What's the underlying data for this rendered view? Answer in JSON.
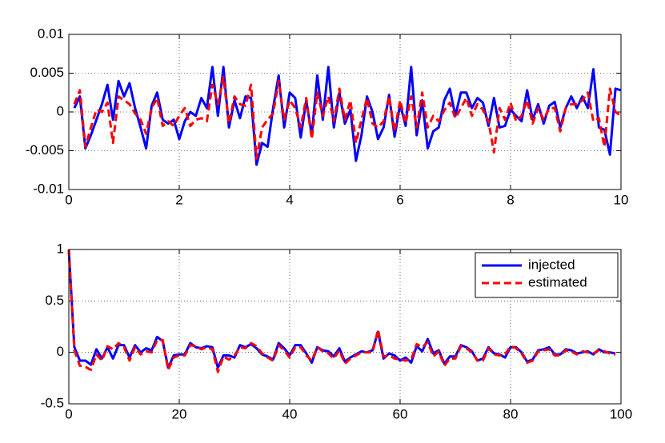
{
  "chart_data": [
    {
      "type": "line",
      "x": [
        0.1,
        0.2,
        0.3,
        0.4,
        0.5,
        0.6,
        0.7,
        0.8,
        0.9,
        1.0,
        1.1,
        1.2,
        1.3,
        1.4,
        1.5,
        1.6,
        1.7,
        1.8,
        1.9,
        2.0,
        2.1,
        2.2,
        2.3,
        2.4,
        2.5,
        2.6,
        2.7,
        2.8,
        2.9,
        3.0,
        3.1,
        3.2,
        3.3,
        3.4,
        3.5,
        3.6,
        3.7,
        3.8,
        3.9,
        4.0,
        4.1,
        4.2,
        4.3,
        4.4,
        4.5,
        4.6,
        4.7,
        4.8,
        4.9,
        5.0,
        5.1,
        5.2,
        5.3,
        5.4,
        5.5,
        5.6,
        5.7,
        5.8,
        5.9,
        6.0,
        6.1,
        6.2,
        6.3,
        6.4,
        6.5,
        6.6,
        6.7,
        6.8,
        6.9,
        7.0,
        7.1,
        7.2,
        7.3,
        7.4,
        7.5,
        7.6,
        7.7,
        7.8,
        7.9,
        8.0,
        8.1,
        8.2,
        8.3,
        8.4,
        8.5,
        8.6,
        8.7,
        8.8,
        8.9,
        9.0,
        9.1,
        9.2,
        9.3,
        9.4,
        9.5,
        9.6,
        9.7,
        9.8,
        9.9,
        10.0
      ],
      "series": [
        {
          "color": "#0000ff",
          "dash": "solid",
          "values": [
            0.0005,
            0.002,
            -0.0047,
            -0.003,
            -0.001,
            0.001,
            0.0035,
            -0.001,
            0.004,
            0.002,
            0.0037,
            0.0005,
            -0.002,
            -0.0047,
            0.0008,
            0.0025,
            -0.001,
            -0.0015,
            -0.001,
            -0.0035,
            -0.0012,
            0,
            -0.0005,
            0.0018,
            0.0005,
            0.0058,
            -0.0005,
            0.0058,
            -0.002,
            0.0015,
            -0.0008,
            0.002,
            0.0018,
            -0.0068,
            -0.004,
            -0.0045,
            0.0005,
            0.0047,
            -0.002,
            0.0025,
            0.0018,
            -0.0033,
            0.0015,
            -0.003,
            0.0047,
            -0.001,
            0.0058,
            -0.002,
            0.0025,
            -0.0015,
            0.0003,
            -0.0063,
            -0.003,
            0.002,
            0,
            -0.0035,
            -0.002,
            0.0022,
            -0.0032,
            0.001,
            -0.0018,
            0.0058,
            -0.003,
            0.0015,
            -0.0047,
            -0.0025,
            -0.002,
            0.0015,
            0.003,
            -0.0005,
            0.0025,
            0.0025,
            0.0005,
            0.0018,
            0.0012,
            -0.0018,
            0.0018,
            -0.002,
            -0.0018,
            0.0003,
            -0.0005,
            -0.0012,
            0.0028,
            -0.001,
            0.001,
            -0.0015,
            0.0008,
            0.0013,
            -0.002,
            0.0005,
            0.002,
            0.0005,
            0.002,
            0.0005,
            0.0055,
            -0.002,
            -0.0023,
            -0.0055,
            0.003,
            0.0028
          ]
        },
        {
          "color": "#ff0000",
          "dash": "dashed",
          "values": [
            0.001,
            0.0028,
            -0.0045,
            -0.002,
            0.0003,
            0,
            0.0012,
            -0.004,
            0.002,
            0.0015,
            0.001,
            -0.0002,
            -0.001,
            -0.0028,
            0.0005,
            0.0018,
            -0.0018,
            -0.0012,
            -0.0018,
            -0.0005,
            0.0005,
            -0.0018,
            -0.001,
            -0.0008,
            -0.0012,
            0.0035,
            0.001,
            0.0045,
            -0.0015,
            0.002,
            0.001,
            0.0008,
            0.0035,
            -0.006,
            -0.002,
            -0.001,
            -0.0002,
            0.004,
            -0.001,
            0.0015,
            0.0005,
            -0.002,
            0.0018,
            -0.0035,
            0.0025,
            -0.0005,
            0.002,
            -0.0012,
            0.003,
            -0.001,
            0.0015,
            -0.004,
            -0.001,
            0.0018,
            -0.0015,
            -0.002,
            -0.0012,
            0.002,
            -0.0025,
            0.0015,
            -0.0015,
            0.002,
            -0.002,
            0.0025,
            -0.002,
            -0.0005,
            -0.0012,
            0.0002,
            0.0012,
            -0.0008,
            0.0005,
            0.0018,
            -0.0005,
            0.001,
            0.0003,
            -0.0012,
            -0.0052,
            0.0005,
            -0.001,
            0.0012,
            -0.0012,
            -0.0005,
            0.0015,
            -0.0015,
            0.0005,
            -0.001,
            0.0005,
            0.0005,
            -0.0025,
            0.0005,
            0.001,
            0.001,
            0.0015,
            0.0025,
            -0.0012,
            -0.0008,
            -0.0045,
            0.003,
            0,
            -0.0005
          ]
        }
      ],
      "xlim": [
        0,
        10
      ],
      "xticks": [
        0,
        2,
        4,
        6,
        8,
        10
      ],
      "ylim": [
        -0.01,
        0.01
      ],
      "yticks": [
        -0.01,
        -0.005,
        0,
        0.005,
        0.01
      ],
      "grid": true
    },
    {
      "type": "line",
      "x": [
        0,
        1,
        2,
        3,
        4,
        5,
        6,
        7,
        8,
        9,
        10,
        11,
        12,
        13,
        14,
        15,
        16,
        17,
        18,
        19,
        20,
        21,
        22,
        23,
        24,
        25,
        26,
        27,
        28,
        29,
        30,
        31,
        32,
        33,
        34,
        35,
        36,
        37,
        38,
        39,
        40,
        41,
        42,
        43,
        44,
        45,
        46,
        47,
        48,
        49,
        50,
        51,
        52,
        53,
        54,
        55,
        56,
        57,
        58,
        59,
        60,
        61,
        62,
        63,
        64,
        65,
        66,
        67,
        68,
        69,
        70,
        71,
        72,
        73,
        74,
        75,
        76,
        77,
        78,
        79,
        80,
        81,
        82,
        83,
        84,
        85,
        86,
        87,
        88,
        89,
        90,
        91,
        92,
        93,
        94,
        95,
        96,
        97,
        98,
        99
      ],
      "series": [
        {
          "name": "injected",
          "color": "#0000ff",
          "dash": "solid",
          "values": [
            1,
            0.05,
            -0.08,
            -0.08,
            -0.12,
            0.03,
            -0.06,
            0.05,
            -0.06,
            0.07,
            0.07,
            -0.05,
            0.07,
            0,
            0.04,
            0.02,
            0.15,
            0.11,
            -0.15,
            -0.03,
            -0.02,
            -0.02,
            0.09,
            0.05,
            0.04,
            0.06,
            0.05,
            -0.15,
            -0.03,
            -0.03,
            -0.05,
            0.07,
            0.05,
            0.08,
            0.04,
            -0.02,
            -0.04,
            -0.07,
            0.09,
            0.04,
            -0.03,
            0.07,
            0.07,
            -0.01,
            -0.1,
            0.05,
            0.02,
            0.01,
            -0.04,
            0.04,
            -0.09,
            -0.05,
            -0.02,
            0.01,
            0,
            0.02,
            0.2,
            -0.06,
            -0.01,
            -0.03,
            -0.08,
            -0.05,
            -0.1,
            0.06,
            0.01,
            0.13,
            -0.01,
            0.02,
            -0.11,
            -0.04,
            -0.04,
            0.07,
            0.05,
            0.01,
            -0.08,
            -0.06,
            0.05,
            -0.01,
            -0.02,
            -0.05,
            0.05,
            0.05,
            0,
            -0.09,
            -0.07,
            0.02,
            0.03,
            0.05,
            -0.02,
            -0.02,
            0.03,
            0.02,
            -0.01,
            0,
            0.01,
            -0.02,
            0.03,
            0,
            0,
            -0.01
          ]
        },
        {
          "name": "estimated",
          "color": "#ff0000",
          "dash": "dashed",
          "values": [
            1,
            0.02,
            -0.13,
            -0.14,
            -0.17,
            -0.02,
            -0.08,
            0.06,
            0.03,
            0.09,
            0.05,
            -0.08,
            0.05,
            -0.02,
            0.01,
            0,
            0.12,
            0.12,
            -0.17,
            -0.05,
            -0.03,
            -0.03,
            0.07,
            0.06,
            0.03,
            0.05,
            0.03,
            -0.19,
            -0.04,
            -0.07,
            -0.03,
            0.05,
            0.04,
            0.09,
            0.06,
            -0.01,
            -0.05,
            -0.08,
            0.07,
            0.02,
            -0.05,
            0.05,
            0.05,
            -0.03,
            -0.08,
            0.05,
            0.01,
            -0.01,
            -0.06,
            0.02,
            -0.11,
            -0.06,
            -0.03,
            0,
            0,
            0,
            0.22,
            -0.04,
            -0.03,
            -0.06,
            -0.07,
            -0.08,
            -0.07,
            0.08,
            0.05,
            0.1,
            -0.04,
            0.01,
            -0.13,
            -0.06,
            -0.06,
            0.06,
            0.04,
            0,
            -0.08,
            -0.08,
            0.04,
            -0.02,
            -0.03,
            -0.02,
            0.06,
            0.04,
            -0.01,
            -0.1,
            -0.08,
            0.01,
            0.02,
            0.03,
            -0.03,
            -0.03,
            0.02,
            0.01,
            -0.02,
            0.01,
            0,
            -0.01,
            0.02,
            0.01,
            -0.01,
            -0.02
          ]
        }
      ],
      "xlim": [
        0,
        100
      ],
      "xticks": [
        0,
        20,
        40,
        60,
        80,
        100
      ],
      "ylim": [
        -0.5,
        1
      ],
      "yticks": [
        -0.5,
        0,
        0.5,
        1
      ],
      "grid": true,
      "legend": "northeast"
    }
  ]
}
